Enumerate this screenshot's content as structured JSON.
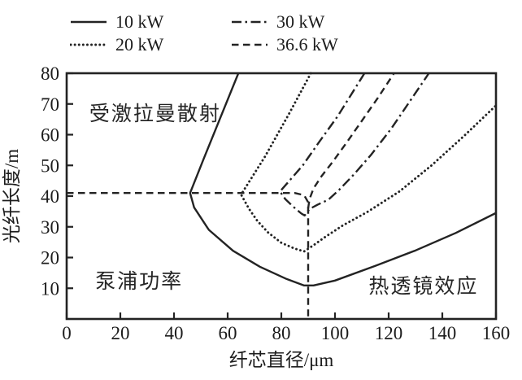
{
  "chart_data": {
    "type": "line",
    "title": "",
    "xlabel": "纤芯直径/μm",
    "ylabel": "光纤长度/m",
    "xlim": [
      0,
      160
    ],
    "ylim": [
      0,
      80
    ],
    "xticks": [
      0,
      20,
      40,
      60,
      80,
      100,
      120,
      140,
      160
    ],
    "yticks": [
      10,
      20,
      30,
      40,
      50,
      60,
      70,
      80
    ],
    "grid": false,
    "legend_position": "top",
    "series": [
      {
        "name": "10 kW",
        "style": "solid",
        "points": [
          [
            64,
            80
          ],
          [
            51,
            52
          ],
          [
            46,
            41
          ],
          [
            47.5,
            36.3
          ],
          [
            53,
            29
          ],
          [
            62,
            22.2
          ],
          [
            72,
            17
          ],
          [
            82,
            13
          ],
          [
            88.5,
            10.9
          ],
          [
            92,
            10.9
          ],
          [
            100,
            12.5
          ],
          [
            115,
            17.3
          ],
          [
            130,
            22.3
          ],
          [
            145,
            28
          ],
          [
            160,
            34.5
          ]
        ]
      },
      {
        "name": "20 kW",
        "style": "dotted",
        "points": [
          [
            91,
            80
          ],
          [
            83,
            67
          ],
          [
            74,
            53
          ],
          [
            65,
            40.5
          ],
          [
            68,
            35.8
          ],
          [
            71,
            32
          ],
          [
            75,
            28.2
          ],
          [
            80,
            24.8
          ],
          [
            85,
            22.9
          ],
          [
            88.5,
            22
          ],
          [
            92,
            24
          ],
          [
            96,
            26.5
          ],
          [
            103,
            30.5
          ],
          [
            112,
            34.8
          ],
          [
            124,
            41.5
          ],
          [
            136,
            50
          ],
          [
            148,
            59.5
          ],
          [
            160,
            69.5
          ]
        ]
      },
      {
        "name": "30 kW",
        "style": "dashdot",
        "points": [
          [
            111,
            80
          ],
          [
            101,
            66
          ],
          [
            94,
            57.5
          ],
          [
            88,
            50
          ],
          [
            83,
            45
          ],
          [
            79.5,
            41.5
          ],
          [
            81.5,
            39
          ],
          [
            84.5,
            36.5
          ],
          [
            87.5,
            34.3
          ],
          [
            88.7,
            33.7
          ],
          [
            90.5,
            35.8
          ],
          [
            93.5,
            37.2
          ],
          [
            97.5,
            38.8
          ],
          [
            101.5,
            42
          ],
          [
            107,
            47
          ],
          [
            113.5,
            53.5
          ],
          [
            121,
            62
          ],
          [
            128,
            71
          ],
          [
            135,
            80
          ]
        ]
      },
      {
        "name": "36.6 kW",
        "style": "dashed",
        "points": [
          [
            90,
            36
          ],
          [
            90.5,
            39
          ],
          [
            92,
            42.5
          ],
          [
            95,
            46.5
          ],
          [
            99,
            51
          ],
          [
            104,
            57
          ],
          [
            110,
            64.5
          ],
          [
            116,
            72
          ],
          [
            122,
            80
          ]
        ]
      }
    ],
    "reference_lines": [
      {
        "style": "dashed",
        "points": [
          [
            0,
            41
          ],
          [
            85,
            41
          ],
          [
            88.5,
            40.3
          ],
          [
            90,
            38
          ],
          [
            90,
            0
          ]
        ]
      }
    ],
    "annotations": [
      {
        "text": "受激拉曼散射",
        "x": 33,
        "y": 67
      },
      {
        "text": "泵浦功率",
        "x": 27,
        "y": 12.5
      },
      {
        "text": "热透镜效应",
        "x": 133,
        "y": 10.8
      }
    ]
  },
  "colors": {
    "stroke": "#232323",
    "text": "#1c1c1c",
    "background": "#ffffff"
  }
}
